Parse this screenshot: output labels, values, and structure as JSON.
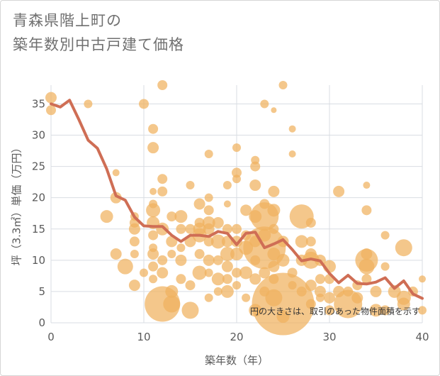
{
  "chart_data": {
    "type": "scatter",
    "title": "青森県階上町の\n築年数別中古戸建て価格",
    "xlabel": "築年数（年）",
    "ylabel": "坪（3.3㎡）単価（万円）",
    "xlim": [
      0,
      40
    ],
    "ylim": [
      0,
      38
    ],
    "xticks": [
      0,
      10,
      20,
      30,
      40
    ],
    "yticks": [
      0,
      5,
      10,
      15,
      20,
      25,
      30,
      35
    ],
    "grid": true,
    "annotation": "円の大きさは、取引のあった物件面積を示す",
    "colors": {
      "bubble": "#f0b25e",
      "line": "#cf6e55",
      "grid": "#d9dde3"
    },
    "series": [
      {
        "type": "bubble",
        "points": [
          [
            0,
            36,
            8
          ],
          [
            0,
            34,
            7
          ],
          [
            4,
            35,
            6
          ],
          [
            7,
            24,
            5
          ],
          [
            6,
            17,
            9
          ],
          [
            7,
            20,
            8
          ],
          [
            7,
            11,
            8
          ],
          [
            8,
            9,
            11
          ],
          [
            9,
            17,
            6
          ],
          [
            9,
            16,
            7
          ],
          [
            9,
            15,
            8
          ],
          [
            9,
            13,
            7
          ],
          [
            9,
            11,
            6
          ],
          [
            9,
            6,
            8
          ],
          [
            10,
            35,
            7
          ],
          [
            10,
            8,
            6
          ],
          [
            11,
            31,
            7
          ],
          [
            11,
            28,
            8
          ],
          [
            11,
            21,
            5
          ],
          [
            11,
            19,
            6
          ],
          [
            11,
            18,
            10
          ],
          [
            11,
            16,
            9
          ],
          [
            11,
            14,
            7
          ],
          [
            11,
            12,
            6
          ],
          [
            11,
            11,
            8
          ],
          [
            11,
            9,
            7
          ],
          [
            11,
            7,
            6
          ],
          [
            12,
            38,
            7
          ],
          [
            12,
            23,
            7
          ],
          [
            12,
            21,
            7
          ],
          [
            12,
            15,
            9
          ],
          [
            12,
            10,
            7
          ],
          [
            12,
            8,
            8
          ],
          [
            12,
            3,
            25
          ],
          [
            13,
            5,
            9
          ],
          [
            13,
            3,
            12
          ],
          [
            13,
            11,
            6
          ],
          [
            13,
            13,
            8
          ],
          [
            13,
            17,
            7
          ],
          [
            14,
            17,
            9
          ],
          [
            14,
            15,
            7
          ],
          [
            14,
            12,
            6
          ],
          [
            14,
            10,
            8
          ],
          [
            14,
            7,
            7
          ],
          [
            15,
            22,
            6
          ],
          [
            15,
            15,
            7
          ],
          [
            15,
            13,
            8
          ],
          [
            15,
            6,
            7
          ],
          [
            15,
            2,
            12
          ],
          [
            16,
            19,
            8
          ],
          [
            16,
            16,
            7
          ],
          [
            16,
            15,
            9
          ],
          [
            16,
            14,
            10
          ],
          [
            16,
            11,
            7
          ],
          [
            16,
            8,
            10
          ],
          [
            17,
            27,
            6
          ],
          [
            17,
            20,
            6
          ],
          [
            17,
            18,
            7
          ],
          [
            17,
            16,
            9
          ],
          [
            17,
            15,
            8
          ],
          [
            17,
            13,
            7
          ],
          [
            17,
            10,
            8
          ],
          [
            17,
            8,
            6
          ],
          [
            17,
            4,
            6
          ],
          [
            18,
            16,
            8
          ],
          [
            18,
            13,
            10
          ],
          [
            18,
            10,
            7
          ],
          [
            18,
            7,
            9
          ],
          [
            18,
            5,
            6
          ],
          [
            19,
            22,
            6
          ],
          [
            19,
            19,
            5
          ],
          [
            19,
            15,
            7
          ],
          [
            19,
            13,
            8
          ],
          [
            19,
            11,
            10
          ],
          [
            19,
            9,
            8
          ],
          [
            19,
            7,
            7
          ],
          [
            19,
            5,
            9
          ],
          [
            20,
            28,
            6
          ],
          [
            20,
            24,
            7
          ],
          [
            20,
            23,
            6
          ],
          [
            20,
            15,
            7
          ],
          [
            20,
            13,
            8
          ],
          [
            20,
            11,
            9
          ],
          [
            20,
            8,
            7
          ],
          [
            20,
            6,
            6
          ],
          [
            21,
            18,
            8
          ],
          [
            21,
            14,
            7
          ],
          [
            21,
            12,
            10
          ],
          [
            21,
            8,
            9
          ],
          [
            21,
            4,
            6
          ],
          [
            22,
            26,
            6
          ],
          [
            22,
            25,
            7
          ],
          [
            22,
            22,
            8
          ],
          [
            22,
            17,
            9
          ],
          [
            22,
            13,
            8
          ],
          [
            22,
            10,
            7
          ],
          [
            22,
            7,
            8
          ],
          [
            22,
            2,
            9
          ],
          [
            23,
            35,
            6
          ],
          [
            23,
            19,
            7
          ],
          [
            23,
            17,
            20
          ],
          [
            23,
            14,
            9
          ],
          [
            23,
            12,
            30
          ],
          [
            23,
            8,
            8
          ],
          [
            23,
            5,
            7
          ],
          [
            24,
            34,
            4
          ],
          [
            24,
            21,
            8
          ],
          [
            24,
            18,
            9
          ],
          [
            24,
            15,
            7
          ],
          [
            24,
            11,
            9
          ],
          [
            24,
            9,
            8
          ],
          [
            24,
            7,
            7
          ],
          [
            24,
            4,
            12
          ],
          [
            25,
            38,
            6
          ],
          [
            25,
            13,
            8
          ],
          [
            25,
            10,
            9
          ],
          [
            25,
            3,
            44
          ],
          [
            25,
            1,
            9
          ],
          [
            26,
            31,
            5
          ],
          [
            26,
            27,
            5
          ],
          [
            26,
            8,
            7
          ],
          [
            26,
            6,
            6
          ],
          [
            27,
            17,
            17
          ],
          [
            27,
            13,
            9
          ],
          [
            27,
            10,
            8
          ],
          [
            27,
            5,
            7
          ],
          [
            28,
            16,
            7
          ],
          [
            28,
            13,
            7
          ],
          [
            28,
            11,
            8
          ],
          [
            28,
            10,
            12
          ],
          [
            28,
            6,
            8
          ],
          [
            28,
            3,
            7
          ],
          [
            29,
            10,
            8
          ],
          [
            29,
            7,
            7
          ],
          [
            29,
            5,
            8
          ],
          [
            29,
            4,
            6
          ],
          [
            30,
            9,
            9
          ],
          [
            30,
            7,
            7
          ],
          [
            30,
            4,
            8
          ],
          [
            30,
            2,
            7
          ],
          [
            31,
            21,
            8
          ],
          [
            31,
            5,
            8
          ],
          [
            32,
            3,
            20
          ],
          [
            32,
            5,
            7
          ],
          [
            33,
            4,
            8
          ],
          [
            33,
            6,
            7
          ],
          [
            34,
            22,
            5
          ],
          [
            34,
            18,
            7
          ],
          [
            34,
            11,
            8
          ],
          [
            34,
            10,
            16
          ],
          [
            34,
            9,
            11
          ],
          [
            34,
            7,
            7
          ],
          [
            35,
            5,
            8
          ],
          [
            35,
            2,
            9
          ],
          [
            36,
            14,
            6
          ],
          [
            36,
            9,
            6
          ],
          [
            36,
            2,
            7
          ],
          [
            37,
            5,
            9
          ],
          [
            38,
            12,
            12
          ],
          [
            38,
            4,
            10
          ],
          [
            38,
            3,
            9
          ],
          [
            39,
            5,
            7
          ],
          [
            40,
            7,
            5
          ],
          [
            40,
            2,
            6
          ]
        ]
      },
      {
        "type": "line",
        "name": "",
        "x": [
          0,
          1,
          2,
          3,
          4,
          5,
          6,
          7,
          8,
          9,
          10,
          11,
          12,
          13,
          14,
          15,
          16,
          17,
          18,
          19,
          20,
          21,
          22,
          23,
          24,
          25,
          26,
          27,
          28,
          29,
          30,
          31,
          32,
          33,
          34,
          35,
          36,
          37,
          38,
          39,
          40
        ],
        "y": [
          35.0,
          34.5,
          35.6,
          32.5,
          29.2,
          27.9,
          24.6,
          20.3,
          19.6,
          16.9,
          15.5,
          15.4,
          15.4,
          14.0,
          13.0,
          14.0,
          14.0,
          13.8,
          14.6,
          14.3,
          12.5,
          14.3,
          14.5,
          12.0,
          12.6,
          13.3,
          11.7,
          9.9,
          10.2,
          9.9,
          7.9,
          6.4,
          7.6,
          6.3,
          6.2,
          6.5,
          7.2,
          5.5,
          6.7,
          4.6,
          3.9
        ]
      }
    ]
  }
}
